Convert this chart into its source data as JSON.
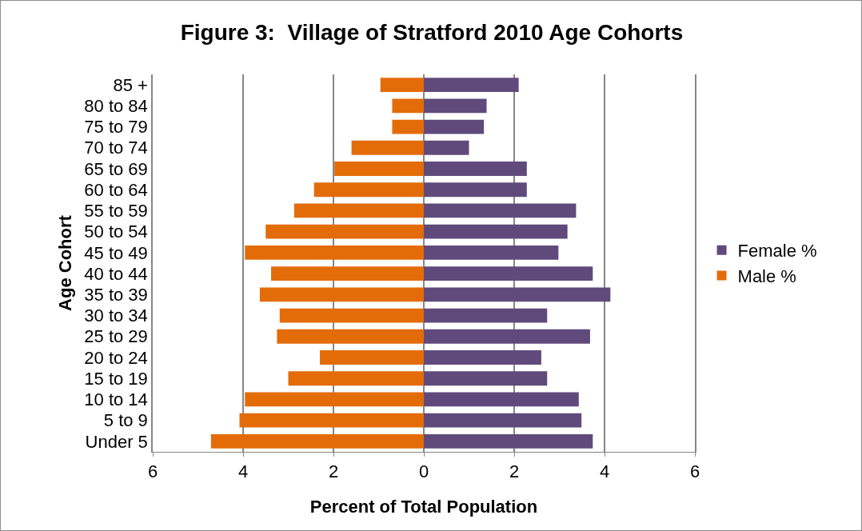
{
  "chart_data": {
    "type": "bar",
    "orientation": "horizontal",
    "title": "Figure 3:  Village of Stratford 2010 Age Cohorts",
    "xlabel": "Percent of Total Population",
    "ylabel": "Age Cohort",
    "categories": [
      "85 +",
      "80 to 84",
      "75 to 79",
      "70 to 74",
      "65 to 69",
      "60 to 64",
      "55 to 59",
      "50 to 54",
      "45 to 49",
      "40 to 44",
      "35 to 39",
      "30 to 34",
      "25 to 29",
      "20 to 24",
      "15 to 19",
      "10 to 14",
      "5 to 9",
      "Under 5"
    ],
    "series": [
      {
        "name": "Female %",
        "color": "#604a7b",
        "values": [
          2.1,
          1.39,
          1.33,
          1.0,
          2.28,
          2.28,
          3.37,
          3.18,
          2.98,
          3.74,
          4.13,
          2.73,
          3.68,
          2.6,
          2.73,
          3.43,
          3.49,
          3.74
        ]
      },
      {
        "name": "Male %",
        "color": "#e36c09",
        "values": [
          -0.96,
          -0.7,
          -0.7,
          -1.6,
          -1.98,
          -2.43,
          -2.87,
          -3.5,
          -3.96,
          -3.38,
          -3.63,
          -3.19,
          -3.25,
          -2.3,
          -3.0,
          -3.96,
          -4.08,
          -4.71
        ]
      }
    ],
    "xlim": [
      -6,
      6
    ],
    "xticks": [
      {
        "value": -6,
        "label": "6"
      },
      {
        "value": -4,
        "label": "4"
      },
      {
        "value": -2,
        "label": "2"
      },
      0,
      2,
      4,
      6
    ],
    "grid": "x",
    "legend": "right",
    "stacked": true
  }
}
